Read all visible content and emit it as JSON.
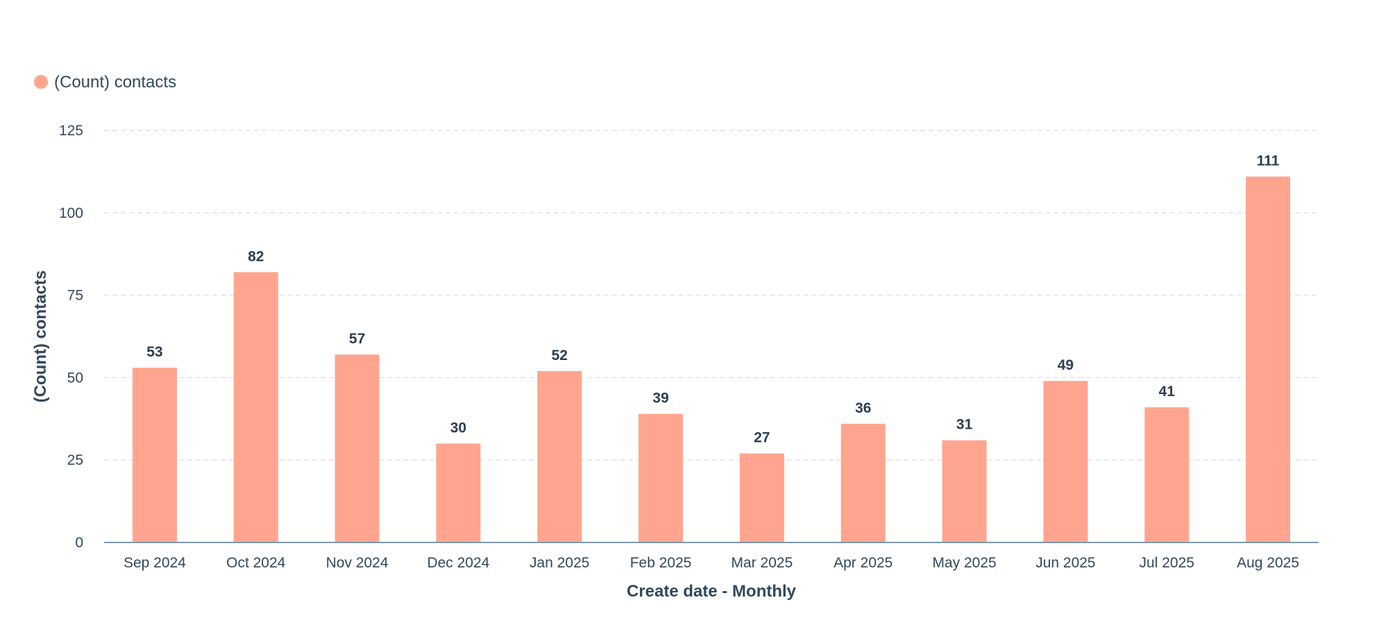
{
  "chart_data": {
    "type": "bar",
    "title": "",
    "categories": [
      "Sep 2024",
      "Oct 2024",
      "Nov 2024",
      "Dec 2024",
      "Jan 2025",
      "Feb 2025",
      "Mar 2025",
      "Apr 2025",
      "May 2025",
      "Jun 2025",
      "Jul 2025",
      "Aug 2025"
    ],
    "series": [
      {
        "name": "(Count) contacts",
        "values": [
          53,
          82,
          57,
          30,
          52,
          39,
          27,
          36,
          31,
          49,
          41,
          111
        ],
        "color": "#ffa58f"
      }
    ],
    "xlabel": "Create date - Monthly",
    "ylabel": "(Count) contacts",
    "ylim": [
      0,
      125
    ],
    "yticks": [
      0,
      25,
      50,
      75,
      100,
      125
    ],
    "grid": true,
    "legend_position": "top-left",
    "data_labels": true
  },
  "colors": {
    "bar": "#ffa58f",
    "text": "#33475b",
    "value_text": "#2d3e50",
    "grid": "#dfe3eb",
    "axis": "#7c98b6"
  }
}
